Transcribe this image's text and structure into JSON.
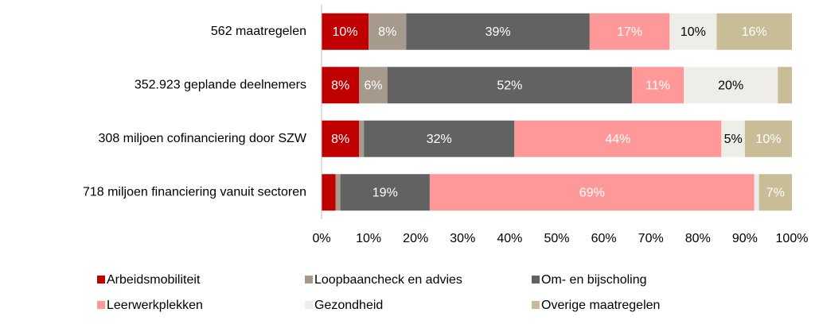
{
  "chart_data": {
    "type": "stacked_bar_horizontal",
    "categories": [
      "562 maatregelen",
      "352.923 geplande deelnemers",
      "308 miljoen cofinanciering door SZW",
      "718 miljoen financiering vanuit sectoren"
    ],
    "series": [
      {
        "name": "Arbeidsmobiliteit",
        "color": "#c00000",
        "label_color": "#ffffff",
        "values": [
          10,
          8,
          8,
          3
        ],
        "value_labels": [
          "10%",
          "8%",
          "8%",
          null
        ]
      },
      {
        "name": "Loopbaancheck en advies",
        "color": "#a59a8c",
        "label_color": "#ffffff",
        "values": [
          8,
          6,
          1,
          1
        ],
        "value_labels": [
          "8%",
          "6%",
          null,
          null
        ]
      },
      {
        "name": "Om- en bijscholing",
        "color": "#626262",
        "label_color": "#ffffff",
        "values": [
          39,
          52,
          32,
          19
        ],
        "value_labels": [
          "39%",
          "52%",
          "32%",
          "19%"
        ]
      },
      {
        "name": "Leerwerkplekken",
        "color": "#ff9999",
        "label_color": "#ffffff",
        "values": [
          17,
          11,
          44,
          69
        ],
        "value_labels": [
          "17%",
          "11%",
          "44%",
          "69%"
        ]
      },
      {
        "name": "Gezondheid",
        "color": "#eeede8",
        "label_color": "#000000",
        "values": [
          10,
          20,
          5,
          1
        ],
        "value_labels": [
          "10%",
          "20%",
          "5%",
          null
        ]
      },
      {
        "name": "Overige maatregelen",
        "color": "#c8bd96",
        "label_color": "#ffffff",
        "values": [
          16,
          3,
          10,
          7
        ],
        "value_labels": [
          "16%",
          null,
          "10%",
          "7%"
        ]
      }
    ],
    "xlim": [
      0,
      100
    ],
    "xticks": [
      {
        "value": 0,
        "label": "0%"
      },
      {
        "value": 10,
        "label": "10%"
      },
      {
        "value": 20,
        "label": "20%"
      },
      {
        "value": 30,
        "label": "30%"
      },
      {
        "value": 40,
        "label": "40%"
      },
      {
        "value": 50,
        "label": "50%"
      },
      {
        "value": 60,
        "label": "60%"
      },
      {
        "value": 70,
        "label": "70%"
      },
      {
        "value": 80,
        "label": "80%"
      },
      {
        "value": 90,
        "label": "90%"
      },
      {
        "value": 100,
        "label": "100%"
      }
    ],
    "legend": "bottom"
  }
}
